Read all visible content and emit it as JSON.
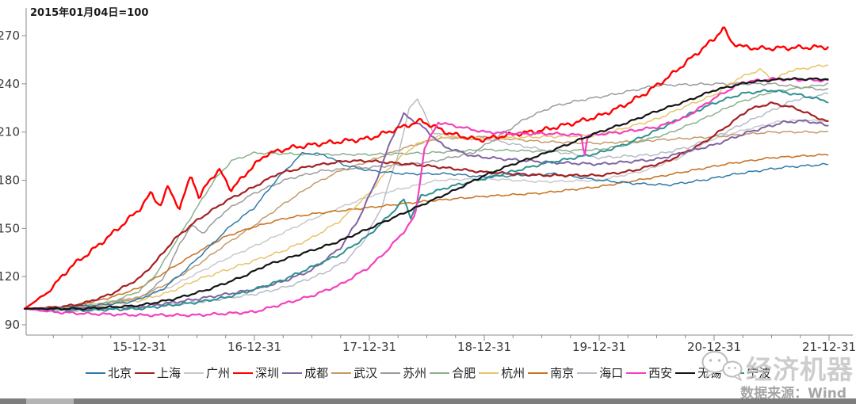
{
  "brand": "经济机器",
  "source_note": "数据来源：Wind",
  "chart_data": {
    "type": "line",
    "title": "2015年01月04日=100",
    "grid": false,
    "legend_position": "bottom",
    "x_axis": {
      "start": "2015-01-04",
      "ticks": [
        "15-12-31",
        "16-12-31",
        "17-12-31",
        "18-12-31",
        "19-12-31",
        "20-12-31",
        "21-12-31"
      ],
      "minor_tick_interval_years": 0.25
    },
    "y_axis": {
      "ticks": [
        90,
        120,
        150,
        180,
        210,
        240,
        270
      ],
      "range_shown": [
        83,
        278
      ]
    },
    "series": [
      {
        "name": "北京",
        "color": "#2E7AA8",
        "width": 1.5,
        "noise": 0.7,
        "x": [
          0,
          0.3,
          0.6,
          0.9,
          1.0,
          1.2,
          1.4,
          1.6,
          1.8,
          2.0,
          2.2,
          2.42,
          2.6,
          2.8,
          3.0,
          3.3,
          3.7,
          4.0,
          4.3,
          4.6,
          5.0,
          5.3,
          5.6,
          5.9,
          6.2,
          6.6,
          7.0
        ],
        "v": [
          100,
          101,
          102,
          104,
          106,
          112,
          124,
          138,
          152,
          163,
          181,
          197,
          196,
          189,
          186,
          184,
          184,
          182,
          183,
          184,
          180,
          178,
          177,
          180,
          184,
          188,
          190
        ]
      },
      {
        "name": "上海",
        "color": "#A62123",
        "width": 2.2,
        "noise": 0.8,
        "x": [
          0,
          0.3,
          0.5,
          0.75,
          1.0,
          1.15,
          1.3,
          1.5,
          1.75,
          2.0,
          2.2,
          2.5,
          2.8,
          3.0,
          3.5,
          4.0,
          4.5,
          5.0,
          5.3,
          5.6,
          5.9,
          6.1,
          6.3,
          6.5,
          6.7,
          7.0
        ],
        "v": [
          100,
          101,
          103,
          109,
          119,
          130,
          143,
          155,
          167,
          176,
          184,
          189,
          192,
          192,
          189,
          185,
          183,
          183,
          186,
          192,
          203,
          213,
          224,
          228,
          225,
          216
        ]
      },
      {
        "name": "广州",
        "color": "#C9C9C9",
        "width": 1.5,
        "noise": 0.7,
        "x": [
          0,
          0.5,
          1.0,
          1.25,
          1.5,
          1.75,
          2.0,
          2.3,
          2.6,
          3.0,
          3.3,
          3.6,
          4.0,
          4.5,
          5.0,
          5.4,
          5.7,
          6.0,
          6.3,
          6.6,
          7.0
        ],
        "v": [
          100,
          102,
          107,
          113,
          122,
          131,
          139,
          149,
          159,
          170,
          175,
          180,
          181,
          179,
          180,
          186,
          194,
          206,
          212,
          217,
          217
        ]
      },
      {
        "name": "深圳",
        "color": "#FF0000",
        "width": 2.4,
        "noise": 1.6,
        "x": [
          0,
          0.2,
          0.4,
          0.6,
          0.8,
          1.0,
          1.1,
          1.18,
          1.25,
          1.35,
          1.45,
          1.52,
          1.6,
          1.7,
          1.8,
          1.95,
          2.1,
          2.3,
          2.6,
          3.0,
          3.2,
          3.45,
          3.7,
          3.95,
          4.2,
          4.5,
          4.8,
          5.0,
          5.2,
          5.4,
          5.6,
          5.8,
          6.0,
          6.08,
          6.15,
          6.25,
          6.4,
          7.0
        ],
        "v": [
          100,
          110,
          126,
          137,
          149,
          162,
          172,
          164,
          176,
          162,
          184,
          168,
          180,
          186,
          174,
          186,
          196,
          200,
          203,
          206,
          211,
          217,
          209,
          205,
          208,
          211,
          216,
          220,
          226,
          234,
          244,
          256,
          268,
          275,
          266,
          263,
          262,
          263
        ]
      },
      {
        "name": "成都",
        "color": "#8064A2",
        "width": 2.0,
        "noise": 0.9,
        "x": [
          0,
          0.5,
          1.0,
          1.5,
          2.0,
          2.25,
          2.5,
          2.75,
          2.9,
          3.05,
          3.2,
          3.3,
          3.45,
          3.65,
          3.9,
          4.2,
          4.6,
          5.0,
          5.5,
          6.0,
          6.3,
          6.6,
          6.8,
          7.0
        ],
        "v": [
          100,
          100,
          101,
          106,
          112,
          117,
          124,
          138,
          155,
          178,
          207,
          221,
          214,
          201,
          195,
          193,
          191,
          190,
          193,
          202,
          210,
          216,
          217,
          214
        ]
      },
      {
        "name": "武汉",
        "color": "#C49A6B",
        "width": 1.5,
        "noise": 0.7,
        "x": [
          0,
          0.5,
          0.75,
          1.0,
          1.25,
          1.5,
          1.75,
          2.0,
          2.25,
          2.5,
          2.75,
          3.0,
          3.3,
          3.6,
          4.0,
          4.5,
          5.0,
          5.5,
          6.0,
          6.5,
          7.0
        ],
        "v": [
          100,
          101,
          104,
          107,
          116,
          127,
          140,
          152,
          165,
          177,
          186,
          192,
          200,
          206,
          207,
          204,
          203,
          205,
          207,
          210,
          210
        ]
      },
      {
        "name": "苏州",
        "color": "#9B9B9B",
        "width": 1.5,
        "noise": 0.8,
        "x": [
          0,
          0.5,
          1.0,
          1.2,
          1.35,
          1.45,
          1.55,
          1.75,
          2.0,
          2.3,
          2.6,
          3.0,
          3.5,
          3.9,
          4.1,
          4.35,
          4.6,
          4.85,
          5.1,
          5.5,
          6.0,
          6.5,
          7.0
        ],
        "v": [
          100,
          101,
          106,
          118,
          140,
          152,
          147,
          161,
          172,
          181,
          186,
          188,
          191,
          197,
          206,
          218,
          226,
          230,
          233,
          239,
          240,
          240,
          236
        ]
      },
      {
        "name": "合肥",
        "color": "#8AB08C",
        "width": 1.5,
        "noise": 0.7,
        "x": [
          0,
          0.5,
          0.75,
          1.0,
          1.15,
          1.3,
          1.5,
          1.65,
          1.8,
          2.0,
          2.5,
          3.0,
          3.5,
          4.0,
          4.5,
          5.0,
          5.3,
          5.6,
          5.9,
          6.2,
          6.5,
          7.0
        ],
        "v": [
          100,
          101,
          104,
          111,
          122,
          140,
          163,
          180,
          192,
          197,
          196,
          196,
          197,
          199,
          198,
          199,
          203,
          209,
          218,
          228,
          235,
          240
        ]
      },
      {
        "name": "杭州",
        "color": "#E7C469",
        "width": 1.5,
        "noise": 0.9,
        "x": [
          0,
          0.5,
          1.0,
          1.25,
          1.5,
          1.75,
          2.0,
          2.25,
          2.5,
          2.75,
          3.0,
          3.2,
          3.4,
          3.6,
          4.0,
          4.5,
          5.0,
          5.5,
          5.75,
          6.0,
          6.2,
          6.4,
          6.52,
          6.65,
          7.0
        ],
        "v": [
          100,
          101,
          105,
          110,
          118,
          124,
          130,
          136,
          144,
          155,
          172,
          190,
          202,
          207,
          206,
          207,
          208,
          218,
          226,
          233,
          243,
          249,
          242,
          248,
          252
        ]
      },
      {
        "name": "南京",
        "color": "#C87628",
        "width": 1.6,
        "noise": 0.6,
        "x": [
          0,
          0.25,
          0.5,
          0.75,
          1.0,
          1.25,
          1.5,
          1.75,
          2.0,
          2.25,
          2.5,
          3.0,
          3.5,
          4.0,
          4.5,
          5.0,
          5.5,
          5.8,
          6.1,
          6.5,
          7.0
        ],
        "v": [
          100,
          100,
          103,
          107,
          113,
          124,
          135,
          145,
          151,
          156,
          159,
          163,
          167,
          170,
          172,
          176,
          182,
          186,
          190,
          194,
          196
        ]
      },
      {
        "name": "海口",
        "color": "#B6BCC6",
        "width": 1.5,
        "noise": 0.9,
        "x": [
          0,
          0.25,
          0.5,
          1.0,
          1.5,
          2.0,
          2.3,
          2.6,
          2.8,
          2.95,
          3.1,
          3.25,
          3.35,
          3.42,
          3.55,
          3.8,
          4.0,
          4.5,
          5.0,
          5.5,
          5.8,
          6.1,
          6.4,
          6.7,
          7.0
        ],
        "v": [
          100,
          99,
          99,
          101,
          104,
          109,
          114,
          122,
          130,
          142,
          162,
          196,
          225,
          231,
          210,
          206,
          206,
          199,
          194,
          196,
          201,
          210,
          220,
          230,
          234
        ]
      },
      {
        "name": "西安",
        "color": "#F441BE",
        "width": 2.2,
        "noise": 0.9,
        "x": [
          0,
          0.25,
          0.5,
          1.0,
          1.5,
          2.0,
          2.25,
          2.5,
          2.75,
          3.0,
          3.15,
          3.3,
          3.4,
          3.48,
          3.6,
          3.8,
          4.0,
          4.3,
          4.6,
          4.85,
          4.87,
          4.9,
          5.2,
          5.5,
          5.75,
          6.0,
          6.25,
          6.5,
          7.0
        ],
        "v": [
          100,
          98,
          97,
          96,
          96,
          98,
          103,
          108,
          115,
          126,
          136,
          148,
          158,
          200,
          216,
          213,
          210,
          209,
          209,
          208,
          194,
          208,
          210,
          213,
          219,
          231,
          241,
          243,
          242
        ]
      },
      {
        "name": "无锡",
        "color": "#141414",
        "width": 2.2,
        "noise": 0.7,
        "x": [
          0,
          0.5,
          1.0,
          1.3,
          1.6,
          1.9,
          2.1,
          2.4,
          2.7,
          3.0,
          3.25,
          3.5,
          3.75,
          4.0,
          4.25,
          4.5,
          4.75,
          5.0,
          5.25,
          5.5,
          5.75,
          6.0,
          6.3,
          6.6,
          7.0
        ],
        "v": [
          100,
          100,
          102,
          106,
          112,
          120,
          127,
          134,
          141,
          150,
          158,
          166,
          174,
          183,
          190,
          196,
          203,
          210,
          216,
          223,
          229,
          236,
          241,
          243,
          243
        ]
      },
      {
        "name": "宁波",
        "color": "#2F9090",
        "width": 2.0,
        "noise": 0.9,
        "x": [
          0,
          0.5,
          1.0,
          1.5,
          1.75,
          2.0,
          2.25,
          2.5,
          2.75,
          3.0,
          3.2,
          3.3,
          3.36,
          3.45,
          3.7,
          4.0,
          4.5,
          5.0,
          5.25,
          5.5,
          5.75,
          6.0,
          6.25,
          6.5,
          6.75,
          7.0
        ],
        "v": [
          100,
          99,
          100,
          104,
          107,
          112,
          118,
          126,
          134,
          146,
          160,
          168,
          157,
          170,
          176,
          181,
          190,
          197,
          203,
          211,
          220,
          228,
          234,
          236,
          233,
          229
        ]
      }
    ]
  }
}
